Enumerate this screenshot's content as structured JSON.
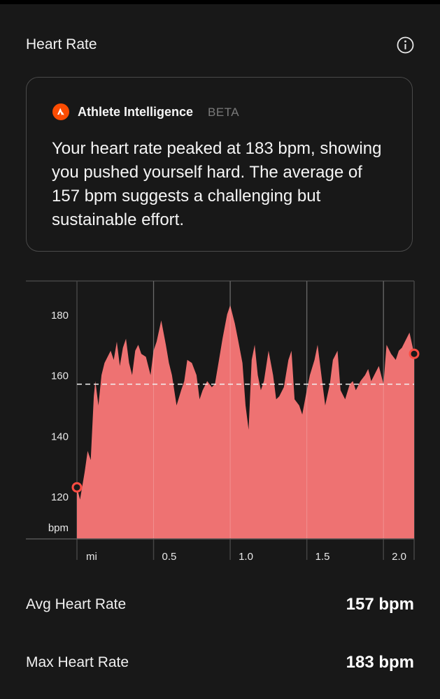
{
  "header": {
    "title": "Heart Rate"
  },
  "ai_card": {
    "name": "Athlete Intelligence",
    "badge": "BETA",
    "summary": "Your heart rate peaked at 183 bpm, showing you pushed yourself hard. The average of 157 bpm suggests a challenging but sustainable effort."
  },
  "colors": {
    "accent": "#fc4c02",
    "area_fill": "#ee7272",
    "background": "#181818"
  },
  "chart_data": {
    "type": "area",
    "xlabel": "mi",
    "ylabel": "bpm",
    "x_ticks": [
      "0.5",
      "1.0",
      "1.5",
      "2.0"
    ],
    "x_tick_values": [
      0.5,
      1.0,
      1.5,
      2.0
    ],
    "y_ticks": [
      "120",
      "140",
      "160",
      "180"
    ],
    "y_tick_values": [
      120,
      140,
      160,
      180
    ],
    "xlim": [
      0,
      2.2
    ],
    "ylim": [
      106,
      191
    ],
    "average": 157,
    "grid": true,
    "start_marker": {
      "x": 0,
      "y": 123
    },
    "end_marker": {
      "x": 2.2,
      "y": 167
    },
    "series": [
      {
        "x": [
          0,
          0.02,
          0.05,
          0.07,
          0.09,
          0.11,
          0.12,
          0.14,
          0.16,
          0.18,
          0.2,
          0.22,
          0.24,
          0.26,
          0.28,
          0.3,
          0.32,
          0.34,
          0.36,
          0.38,
          0.4,
          0.42,
          0.45,
          0.48,
          0.5,
          0.52,
          0.55,
          0.58,
          0.6,
          0.62,
          0.65,
          0.68,
          0.7,
          0.72,
          0.75,
          0.78,
          0.8,
          0.82,
          0.85,
          0.88,
          0.9,
          0.93,
          0.95,
          0.98,
          1.0,
          1.03,
          1.05,
          1.08,
          1.1,
          1.12,
          1.14,
          1.16,
          1.18,
          1.2,
          1.22,
          1.25,
          1.28,
          1.3,
          1.32,
          1.35,
          1.38,
          1.4,
          1.42,
          1.45,
          1.47,
          1.5,
          1.52,
          1.55,
          1.57,
          1.6,
          1.62,
          1.65,
          1.67,
          1.7,
          1.72,
          1.75,
          1.78,
          1.8,
          1.82,
          1.85,
          1.88,
          1.9,
          1.92,
          1.95,
          1.97,
          2.0,
          2.02,
          2.05,
          2.08,
          2.1,
          2.12,
          2.15,
          2.17,
          2.2
        ],
        "y": [
          123,
          119,
          128,
          135,
          132,
          153,
          158,
          150,
          160,
          164,
          166,
          168,
          165,
          171,
          163,
          169,
          172,
          164,
          160,
          168,
          170,
          167,
          166,
          160,
          168,
          171,
          178,
          170,
          164,
          160,
          150,
          155,
          158,
          165,
          164,
          160,
          152,
          155,
          158,
          156,
          157,
          166,
          172,
          180,
          183,
          177,
          172,
          164,
          150,
          142,
          165,
          170,
          160,
          155,
          158,
          168,
          160,
          152,
          153,
          156,
          165,
          168,
          152,
          150,
          147,
          155,
          160,
          165,
          170,
          158,
          150,
          157,
          165,
          168,
          155,
          152,
          157,
          158,
          155,
          158,
          160,
          162,
          158,
          161,
          163,
          157,
          170,
          167,
          165,
          168,
          169,
          172,
          174,
          167
        ]
      }
    ]
  },
  "stats": [
    {
      "label": "Avg Heart Rate",
      "value": "157 bpm"
    },
    {
      "label": "Max Heart Rate",
      "value": "183 bpm"
    }
  ]
}
